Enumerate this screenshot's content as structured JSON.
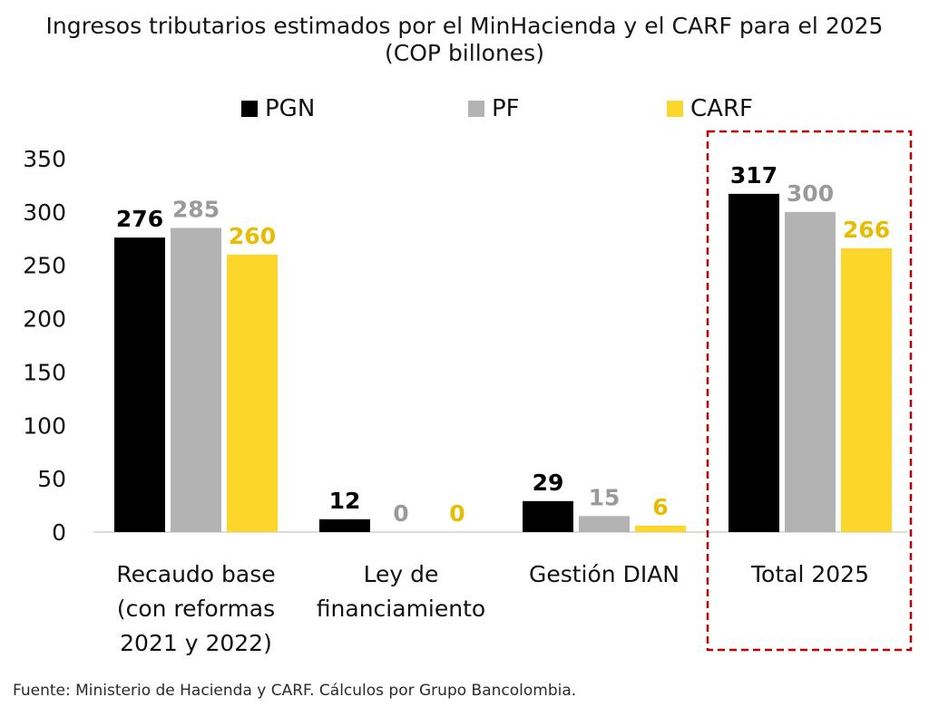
{
  "chart_data": {
    "type": "bar",
    "title_lines": [
      "Ingresos tributarios estimados por el MinHacienda y el CARF para el 2025",
      "(COP billones)"
    ],
    "categories": [
      [
        "Recaudo base",
        "(con reformas",
        "2021 y 2022)"
      ],
      [
        "Ley de",
        "financiamiento"
      ],
      [
        "Gestión DIAN"
      ],
      [
        "Total 2025"
      ]
    ],
    "series": [
      {
        "name": "PGN",
        "values": [
          276,
          12,
          29,
          317
        ],
        "color": "#000000",
        "label_color": "#000000"
      },
      {
        "name": "PF",
        "values": [
          285,
          0,
          15,
          300
        ],
        "color": "#b3b3b3",
        "label_color": "#9a9a9a"
      },
      {
        "name": "CARF",
        "values": [
          260,
          0,
          6,
          266
        ],
        "color": "#fdd62b",
        "label_color": "#e8bc00"
      }
    ],
    "yaxis": {
      "min": 0,
      "max": 350,
      "ticks": [
        "0",
        "50",
        "100",
        "150",
        "200",
        "250",
        "300",
        "350"
      ]
    },
    "grid": false,
    "legend_position": "top-center",
    "highlight": {
      "category_index": 3,
      "style": "dashed-box",
      "color": "#c00000"
    }
  },
  "source": "Fuente: Ministerio de Hacienda y CARF. Cálculos por Grupo Bancolombia."
}
